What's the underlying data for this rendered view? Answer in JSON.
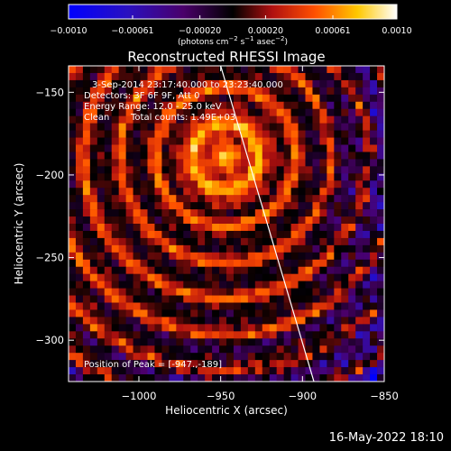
{
  "chart_data": {
    "type": "heatmap",
    "title": "Reconstructed RHESSI Image",
    "xlabel": "Heliocentric X (arcsec)",
    "ylabel": "Heliocentric Y (arcsec)",
    "xlim": [
      -1043,
      -850
    ],
    "ylim": [
      -325,
      -134
    ],
    "xticks": [
      -1000,
      -950,
      -900,
      -850
    ],
    "xtick_labels": [
      "−1000",
      "−950",
      "−900",
      "−850"
    ],
    "yticks": [
      -300,
      -250,
      -200,
      -150
    ],
    "ytick_labels": [
      "−300",
      "−250",
      "−200",
      "−150"
    ],
    "colorbar": {
      "min": -0.001,
      "max": 0.001,
      "ticks": [
        -0.001,
        -0.00061,
        -0.0002,
        0.0002,
        0.00061,
        0.001
      ],
      "tick_labels": [
        "−0.0010",
        "−0.00061",
        "−0.00020",
        "0.00020",
        "0.00061",
        "0.0010"
      ],
      "unit_main": "(photons cm",
      "unit_sup1": "−2",
      "unit_mid1": " s",
      "unit_sup2": "−1",
      "unit_mid2": " asec",
      "unit_sup3": "−2",
      "unit_end": ")"
    },
    "annotations": {
      "time_range": "3-Sep-2014 23:17:40.000 to 23:23:40.000",
      "detectors": "Detectors: 3F 6F 9F, Att 0",
      "energy": "Energy Range: 12.0 - 25.0 keV",
      "algorithm": "Clean",
      "counts": "Total counts: 1.49E+03",
      "peak": "Position of Peak = [-947.,-189]"
    },
    "peak": {
      "x": -947,
      "y": -189
    },
    "limb_line": [
      {
        "x": -950,
        "y": -134
      },
      {
        "x": -893,
        "y": -325
      }
    ],
    "grid": false,
    "colormap": [
      "#0000ff",
      "#3f007a",
      "#000000",
      "#c01010",
      "#ff7000",
      "#ffff00",
      "#ffffff"
    ]
  },
  "footer": {
    "date": "16-May-2022 18:10"
  }
}
